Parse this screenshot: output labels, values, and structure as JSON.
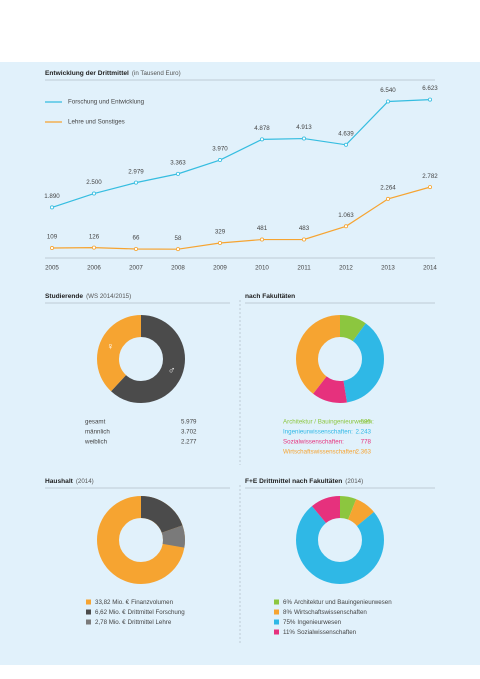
{
  "chart_data": [
    {
      "type": "line",
      "title": "Entwicklung der Drittmittel",
      "subtitle": "(in Tausend Euro)",
      "categories": [
        "2005",
        "2006",
        "2007",
        "2008",
        "2009",
        "2010",
        "2011",
        "2012",
        "2013",
        "2014"
      ],
      "ylim": [
        0,
        7000
      ],
      "series": [
        {
          "name": "Forschung und Entwicklung",
          "color": "#35bde0",
          "values": [
            1890,
            2500,
            2979,
            3363,
            3970,
            4878,
            4913,
            4639,
            6540,
            6623
          ],
          "value_labels": [
            "1.890",
            "2.500",
            "2.979",
            "3.363",
            "3.970",
            "4.878",
            "4.913",
            "4.639",
            "6.540",
            "6.623"
          ]
        },
        {
          "name": "Lehre und Sonstiges",
          "color": "#f6a431",
          "values": [
            109,
            126,
            66,
            58,
            329,
            481,
            483,
            1063,
            2264,
            2782
          ],
          "value_labels": [
            "109",
            "126",
            "66",
            "58",
            "329",
            "481",
            "483",
            "1.063",
            "2.264",
            "2.782"
          ]
        }
      ]
    },
    {
      "type": "donut",
      "title": "Studierende",
      "subtitle": "(WS 2014/2015)",
      "total_name": "gesamt",
      "total": 5979,
      "total_label": "5.979",
      "categories": [
        "männlich",
        "weiblich"
      ],
      "values": [
        3702,
        2277
      ],
      "value_labels": [
        "3.702",
        "2.277"
      ],
      "colors": [
        "#4b4b4b",
        "#f6a431"
      ],
      "symbols": [
        "♂",
        "♀"
      ]
    },
    {
      "type": "donut",
      "title": "nach Fakultäten",
      "categories": [
        "Architektur / Bauingenieurwesen:",
        "Ingenieurwissenschaften:",
        "Sozialwissenschaften:",
        "Wirtschaftswissenschaften:"
      ],
      "values": [
        595,
        2243,
        778,
        2363
      ],
      "value_labels": [
        "595",
        "2.243",
        "778",
        "2.363"
      ],
      "colors": [
        "#8cc63f",
        "#2fb8e6",
        "#e6317d",
        "#f6a431"
      ]
    },
    {
      "type": "donut",
      "title": "Haushalt",
      "subtitle": "(2014)",
      "categories": [
        "Finanzvolumen",
        "Drittmittel Forschung",
        "Drittmittel Lehre"
      ],
      "values": [
        33.82,
        6.62,
        2.78
      ],
      "value_labels": [
        "33,82 Mio. €",
        "6,62 Mio. €",
        "2,78 Mio. €"
      ],
      "colors": [
        "#f6a431",
        "#4b4b4b",
        "#7a7a7a"
      ]
    },
    {
      "type": "donut",
      "title": "F+E Drittmittel nach Fakultäten",
      "subtitle": "(2014)",
      "categories": [
        "Architektur und Bauingenieurwesen",
        "Wirtschaftswissenschaften",
        "Ingenieurwesen",
        "Sozialwissenschaften"
      ],
      "values": [
        6,
        8,
        75,
        11
      ],
      "value_labels": [
        "6%",
        "8%",
        "75%",
        "11%"
      ],
      "colors": [
        "#8cc63f",
        "#f6a431",
        "#2fb8e6",
        "#e6317d"
      ]
    }
  ]
}
